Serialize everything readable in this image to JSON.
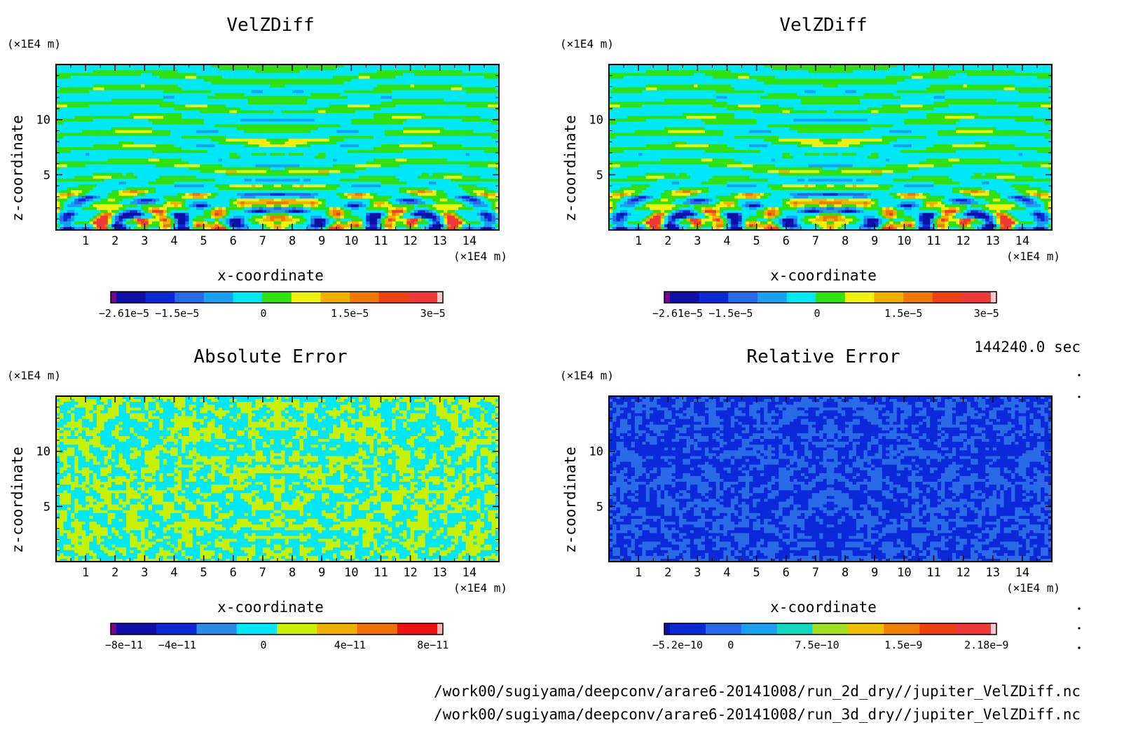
{
  "time_label": "144240.0 sec",
  "footer": {
    "line1": "/work00/sugiyama/deepconv/arare6-20141008/run_2d_dry//jupiter_VelZDiff.nc",
    "line2": "/work00/sugiyama/deepconv/arare6-20141008/run_3d_dry//jupiter_VelZDiff.nc"
  },
  "chart_data": [
    {
      "type": "heatmap",
      "title": "VelZDiff",
      "xlabel": "x-coordinate",
      "ylabel": "z-coordinate",
      "x_unit": "(×1E4 m)",
      "y_unit": "(×1E4 m)",
      "xlim": [
        0,
        15
      ],
      "ylim": [
        0,
        15
      ],
      "x_ticks": [
        "1",
        "2",
        "3",
        "4",
        "5",
        "6",
        "7",
        "8",
        "9",
        "10",
        "11",
        "12",
        "13",
        "14"
      ],
      "y_ticks": [
        "5",
        "10"
      ],
      "pattern": "velocity",
      "colorbar": {
        "colors": [
          "#7e0090",
          "#1010a8",
          "#0a2ad8",
          "#2a6ae8",
          "#1aa0f0",
          "#00e8f8",
          "#30e010",
          "#f0f010",
          "#f0b000",
          "#f07800",
          "#f04010",
          "#f03838",
          "#f8c8c8"
        ],
        "tick_labels": [
          "−2.61e−5",
          "−1.5e−5",
          "0",
          "1.5e−5",
          "3e−5"
        ]
      }
    },
    {
      "type": "heatmap",
      "title": "VelZDiff",
      "xlabel": "x-coordinate",
      "ylabel": "z-coordinate",
      "x_unit": "(×1E4 m)",
      "y_unit": "(×1E4 m)",
      "xlim": [
        0,
        15
      ],
      "ylim": [
        0,
        15
      ],
      "x_ticks": [
        "1",
        "2",
        "3",
        "4",
        "5",
        "6",
        "7",
        "8",
        "9",
        "10",
        "11",
        "12",
        "13",
        "14"
      ],
      "y_ticks": [
        "5",
        "10"
      ],
      "pattern": "velocity",
      "colorbar": {
        "colors": [
          "#7e0090",
          "#1010a8",
          "#0a2ad8",
          "#2a6ae8",
          "#1aa0f0",
          "#00e8f8",
          "#30e010",
          "#f0f010",
          "#f0b000",
          "#f07800",
          "#f04010",
          "#f03838",
          "#f8c8c8"
        ],
        "tick_labels": [
          "−2.61e−5",
          "−1.5e−5",
          "0",
          "1.5e−5",
          "3e−5"
        ]
      }
    },
    {
      "type": "heatmap",
      "title": "Absolute Error",
      "xlabel": "x-coordinate",
      "ylabel": "z-coordinate",
      "x_unit": "(×1E4 m)",
      "y_unit": "(×1E4 m)",
      "xlim": [
        0,
        15
      ],
      "ylim": [
        0,
        15
      ],
      "x_ticks": [
        "1",
        "2",
        "3",
        "4",
        "5",
        "6",
        "7",
        "8",
        "9",
        "10",
        "11",
        "12",
        "13",
        "14"
      ],
      "y_ticks": [
        "5",
        "10"
      ],
      "pattern": "abserr",
      "colorbar": {
        "colors": [
          "#7e0090",
          "#1010a8",
          "#0a2ad8",
          "#2a8ae8",
          "#00e8f8",
          "#c8f000",
          "#f0b000",
          "#f07000",
          "#f01010",
          "#f8b0b0"
        ],
        "tick_labels": [
          "−8e−11",
          "−4e−11",
          "0",
          "4e−11",
          "8e−11"
        ]
      }
    },
    {
      "type": "heatmap",
      "title": "Relative Error",
      "xlabel": "x-coordinate",
      "ylabel": "z-coordinate",
      "x_unit": "(×1E4 m)",
      "y_unit": "(×1E4 m)",
      "xlim": [
        0,
        15
      ],
      "ylim": [
        0,
        15
      ],
      "x_ticks": [
        "1",
        "2",
        "3",
        "4",
        "5",
        "6",
        "7",
        "8",
        "9",
        "10",
        "11",
        "12",
        "13",
        "14"
      ],
      "y_ticks": [
        "5",
        "10"
      ],
      "pattern": "relerr",
      "colorbar": {
        "colors": [
          "#1010a8",
          "#0a2ad8",
          "#2a6ae8",
          "#1aa0f0",
          "#10d8c0",
          "#a0e020",
          "#f0c000",
          "#f08000",
          "#f04010",
          "#f03838",
          "#f8c8c8"
        ],
        "tick_labels": [
          "−5.2e−10",
          "0",
          "7.5e−10",
          "1.5e−9",
          "2.18e−9"
        ]
      }
    }
  ]
}
